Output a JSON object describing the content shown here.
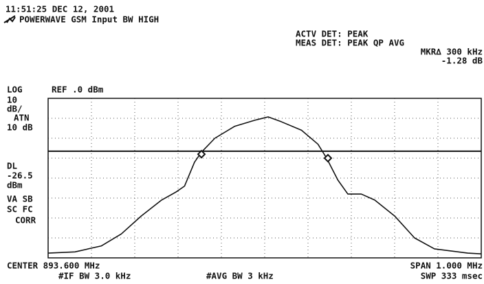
{
  "chart_data": {
    "type": "line",
    "timestamp": "11:51:25 DEC 12, 2001",
    "title": "POWERWAVE GSM Input BW HIGH",
    "detector": [
      "ACTV DET: PEAK",
      "MEAS DET: PEAK QP AVG"
    ],
    "marker_readout": [
      "MKR∆ 300 kHz",
      "-1.28 dB"
    ],
    "scale_mode": "LOG",
    "ref_label": "REF .0 dBm",
    "left_panel": [
      "10",
      "dB/",
      "ATN",
      "10 dB"
    ],
    "dl_label": "DL",
    "display_line": -26.5,
    "dl_unit": "dBm",
    "left_panel_lower": [
      "VA SB",
      "SC FC",
      "CORR"
    ],
    "center_label": "CENTER 893.600 MHz",
    "span_label": "SPAN 1.000 MHz",
    "if_bw": "#IF BW 3.0 kHz",
    "avg_bw": "#AVG BW 3 kHz",
    "sweep": "SWP 333 msec",
    "xlim": [
      893.1,
      894.1
    ],
    "ylim": [
      -80,
      0
    ],
    "grid": true,
    "x": [
      893.1,
      893.162,
      893.223,
      893.269,
      893.315,
      893.362,
      893.395,
      893.415,
      893.438,
      893.454,
      893.485,
      893.531,
      893.577,
      893.608,
      893.638,
      893.685,
      893.723,
      893.743,
      893.769,
      893.792,
      893.823,
      893.854,
      893.9,
      893.946,
      893.992,
      894.069,
      894.1
    ],
    "series": [
      {
        "color": "#111111",
        "values": [
          -77.6,
          -77,
          -74,
          -68,
          -59,
          -51,
          -47,
          -44,
          -32,
          -27,
          -20,
          -14,
          -11,
          -9.3,
          -11.7,
          -16,
          -23,
          -30,
          -41,
          -48,
          -48,
          -51,
          -59,
          -70,
          -75.5,
          -77.6,
          -78
        ]
      }
    ],
    "markers": [
      {
        "x": 893.454,
        "y": -28
      },
      {
        "x": 893.746,
        "y": -30
      }
    ]
  }
}
